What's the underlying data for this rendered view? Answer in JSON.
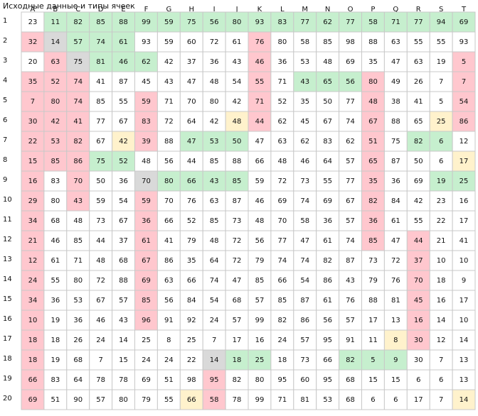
{
  "title": "Исходные данные и типы ячеек",
  "columns": [
    "A",
    "B",
    "C",
    "D",
    "E",
    "F",
    "G",
    "H",
    "I",
    "J",
    "K",
    "L",
    "M",
    "N",
    "O",
    "P",
    "Q",
    "R",
    "S",
    "T"
  ],
  "palette": {
    "w": "#ffffff",
    "g": "#c6efce",
    "p": "#ffc7ce",
    "s": "#d9d9d9",
    "y": "#fff2cc"
  },
  "rows": [
    {
      "label": 1,
      "fills": "wggggggggggggggggggg",
      "cells": [
        23,
        11,
        82,
        85,
        88,
        99,
        59,
        75,
        56,
        80,
        93,
        83,
        77,
        62,
        77,
        58,
        71,
        77,
        94,
        69
      ]
    },
    {
      "label": 2,
      "fills": "psgggwwwwwpwwwwwwwww",
      "cells": [
        32,
        14,
        57,
        74,
        61,
        93,
        59,
        60,
        72,
        61,
        76,
        80,
        58,
        85,
        98,
        88,
        63,
        55,
        55,
        93
      ]
    },
    {
      "label": 3,
      "fills": "wpsgggwwwwpwwwwwwwwp",
      "cells": [
        20,
        63,
        75,
        81,
        46,
        62,
        42,
        37,
        36,
        43,
        46,
        36,
        53,
        48,
        69,
        35,
        47,
        63,
        19,
        5
      ]
    },
    {
      "label": 4,
      "fills": "pppwwwwwwwpwgggpwwwp",
      "cells": [
        35,
        52,
        74,
        41,
        87,
        45,
        43,
        47,
        48,
        54,
        55,
        71,
        43,
        65,
        56,
        80,
        49,
        26,
        7,
        7
      ]
    },
    {
      "label": 5,
      "fills": "pppwwpwwwwpwwwwpwwwp",
      "cells": [
        7,
        80,
        74,
        85,
        55,
        59,
        71,
        70,
        80,
        42,
        71,
        52,
        35,
        50,
        77,
        48,
        38,
        41,
        5,
        54
      ]
    },
    {
      "label": 6,
      "fills": "pppwwpwwwypwwwwpwwyp",
      "cells": [
        30,
        42,
        41,
        77,
        67,
        83,
        72,
        64,
        42,
        48,
        44,
        62,
        45,
        67,
        74,
        67,
        88,
        65,
        25,
        86
      ]
    },
    {
      "label": 7,
      "fills": "pppwypwgggwwwwwpwggw",
      "cells": [
        22,
        53,
        82,
        67,
        42,
        39,
        88,
        47,
        53,
        50,
        47,
        63,
        62,
        83,
        62,
        51,
        75,
        82,
        6,
        12
      ]
    },
    {
      "label": 8,
      "fills": "pppggwwwwwwwwwwpwwwy",
      "cells": [
        15,
        85,
        86,
        75,
        52,
        48,
        56,
        44,
        85,
        88,
        66,
        48,
        46,
        64,
        57,
        65,
        87,
        50,
        6,
        17
      ]
    },
    {
      "label": 9,
      "fills": "pwpwwsggggwwwwwpwwgg",
      "cells": [
        16,
        83,
        70,
        50,
        36,
        70,
        80,
        66,
        43,
        85,
        59,
        72,
        73,
        55,
        77,
        35,
        36,
        69,
        19,
        25
      ]
    },
    {
      "label": 10,
      "fills": "pwpwwpwwwwwwwwwpwwww",
      "cells": [
        29,
        80,
        43,
        59,
        54,
        59,
        70,
        76,
        63,
        87,
        46,
        69,
        74,
        69,
        67,
        82,
        84,
        42,
        23,
        16
      ]
    },
    {
      "label": 11,
      "fills": "pwwwwpwwwwwwwwwpwwww",
      "cells": [
        34,
        68,
        48,
        73,
        67,
        36,
        66,
        52,
        85,
        73,
        48,
        70,
        58,
        36,
        57,
        36,
        61,
        55,
        22,
        17
      ]
    },
    {
      "label": 12,
      "fills": "pwwwwpwwwwwwwwwpwpww",
      "cells": [
        21,
        46,
        85,
        44,
        37,
        61,
        41,
        79,
        48,
        72,
        56,
        77,
        47,
        61,
        74,
        85,
        47,
        44,
        21,
        41
      ]
    },
    {
      "label": 13,
      "fills": "pwwwwpwwwwwwwwwwwpww",
      "cells": [
        12,
        61,
        71,
        48,
        68,
        67,
        86,
        35,
        64,
        72,
        79,
        74,
        74,
        82,
        87,
        73,
        72,
        37,
        10,
        10
      ]
    },
    {
      "label": 14,
      "fills": "pwwwwpwwwwwwwwwwwpww",
      "cells": [
        24,
        55,
        80,
        72,
        88,
        69,
        63,
        66,
        74,
        47,
        85,
        66,
        54,
        86,
        43,
        79,
        76,
        70,
        18,
        9
      ]
    },
    {
      "label": 15,
      "fills": "pwwwwpwwwwwwwwwwwpww",
      "cells": [
        34,
        36,
        53,
        67,
        57,
        85,
        56,
        84,
        54,
        68,
        57,
        85,
        87,
        61,
        76,
        88,
        81,
        45,
        16,
        17
      ]
    },
    {
      "label": 16,
      "fills": "pwwwwpwwwwwwwwwwwpww",
      "cells": [
        10,
        19,
        36,
        46,
        43,
        96,
        91,
        92,
        24,
        57,
        99,
        82,
        86,
        56,
        57,
        17,
        13,
        16,
        14,
        10
      ]
    },
    {
      "label": 17,
      "fills": "pwwwwwwwwwwwwwwwypww",
      "cells": [
        18,
        18,
        26,
        24,
        14,
        25,
        8,
        25,
        7,
        17,
        16,
        24,
        57,
        95,
        91,
        11,
        8,
        30,
        12,
        14
      ]
    },
    {
      "label": 18,
      "fills": "pwwwwwwwsggwwwgggwww",
      "cells": [
        18,
        19,
        68,
        7,
        15,
        24,
        24,
        22,
        14,
        18,
        25,
        18,
        73,
        66,
        82,
        5,
        9,
        30,
        7,
        13
      ]
    },
    {
      "label": 19,
      "fills": "pwwwwwwwpwwwwwwwwwww",
      "cells": [
        66,
        83,
        64,
        78,
        78,
        69,
        51,
        98,
        95,
        82,
        80,
        95,
        60,
        95,
        68,
        15,
        15,
        6,
        6,
        13
      ]
    },
    {
      "label": 20,
      "fills": "pwwwwwwypwwwwwwwwwwy",
      "cells": [
        69,
        51,
        90,
        57,
        80,
        79,
        55,
        66,
        58,
        78,
        99,
        71,
        81,
        53,
        68,
        6,
        6,
        17,
        7,
        14
      ]
    }
  ]
}
